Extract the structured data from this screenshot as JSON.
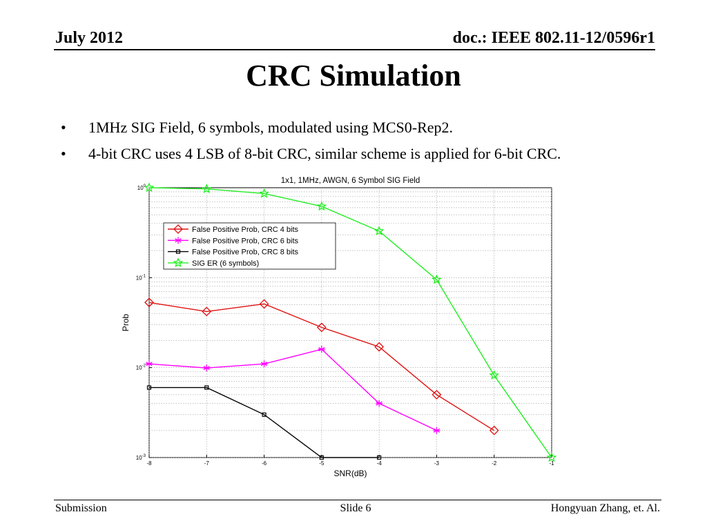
{
  "header": {
    "date": "July 2012",
    "doc": "doc.: IEEE 802.11-12/0596r1"
  },
  "slide_title": "CRC Simulation",
  "bullets": [
    "1MHz SIG Field, 6 symbols, modulated using MCS0-Rep2.",
    "4-bit CRC uses 4 LSB of 8-bit CRC, similar scheme is applied for 6-bit CRC."
  ],
  "bullet_glyph": "•",
  "footer": {
    "left": "Submission",
    "center": "Slide 6",
    "right": "Hongyuan Zhang, et. Al."
  },
  "chart_data": {
    "type": "line",
    "title": "1x1, 1MHz, AWGN, 6 Symbol SIG Field",
    "xlabel": "SNR(dB)",
    "ylabel": "Prob",
    "xlim": [
      -8,
      -1
    ],
    "ylim": [
      0.001,
      1
    ],
    "yscale": "log",
    "x_ticks": [
      -8,
      -7,
      -6,
      -5,
      -4,
      -3,
      -2,
      -1
    ],
    "y_tick_labels": [
      {
        "base": "10",
        "exp": "0",
        "value": 1
      },
      {
        "base": "10",
        "exp": "-1",
        "value": 0.1
      },
      {
        "base": "10",
        "exp": "-2",
        "value": 0.01
      },
      {
        "base": "10",
        "exp": "-3",
        "value": 0.001
      }
    ],
    "grid": true,
    "legend_position": "upper-left",
    "series": [
      {
        "name": "False Positive Prob, CRC 4 bits",
        "color": "#e01010",
        "marker": "diamond",
        "x": [
          -8,
          -7,
          -6,
          -5,
          -4,
          -3,
          -2
        ],
        "y": [
          0.053,
          0.042,
          0.051,
          0.028,
          0.017,
          0.005,
          0.002
        ]
      },
      {
        "name": "False Positive Prob, CRC 6 bits",
        "color": "#ff00ff",
        "marker": "asterisk",
        "x": [
          -8,
          -7,
          -6,
          -5,
          -4,
          -3
        ],
        "y": [
          0.011,
          0.0099,
          0.011,
          0.016,
          0.004,
          0.002
        ]
      },
      {
        "name": "False Positive Prob, CRC 8 bits",
        "color": "#000000",
        "marker": "square",
        "x": [
          -8,
          -7,
          -6,
          -5,
          -4
        ],
        "y": [
          0.006,
          0.006,
          0.003,
          0.001,
          0.001
        ]
      },
      {
        "name": "SIG ER (6 symbols)",
        "color": "#22ee22",
        "marker": "star",
        "x": [
          -8,
          -7,
          -6,
          -5,
          -4,
          -3,
          -2,
          -1
        ],
        "y": [
          1.0,
          0.97,
          0.86,
          0.62,
          0.33,
          0.095,
          0.0082,
          0.001
        ]
      }
    ]
  }
}
